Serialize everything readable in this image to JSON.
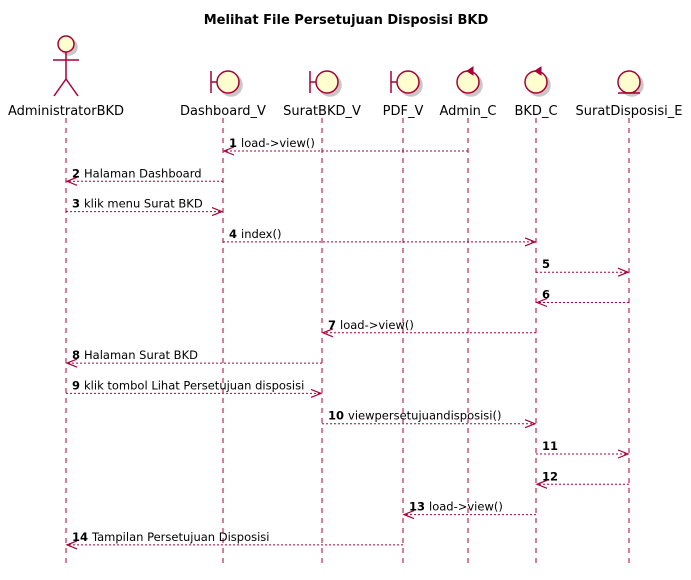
{
  "title": "Melihat File Persetujuan Disposisi BKD",
  "participants": [
    {
      "id": "admin",
      "name": "AdministratorBKD",
      "kind": "actor"
    },
    {
      "id": "dash",
      "name": "Dashboard_V",
      "kind": "boundary"
    },
    {
      "id": "surat",
      "name": "SuratBKD_V",
      "kind": "boundary"
    },
    {
      "id": "pdf",
      "name": "PDF_V",
      "kind": "boundary"
    },
    {
      "id": "adminc",
      "name": "Admin_C",
      "kind": "control"
    },
    {
      "id": "bkdc",
      "name": "BKD_C",
      "kind": "control"
    },
    {
      "id": "entity",
      "name": "SuratDisposisi_E",
      "kind": "entity"
    }
  ],
  "messages": [
    {
      "num": "1",
      "text": "load->view()",
      "from": "adminc",
      "to": "dash"
    },
    {
      "num": "2",
      "text": "Halaman Dashboard",
      "from": "dash",
      "to": "admin"
    },
    {
      "num": "3",
      "text": "klik menu Surat BKD",
      "from": "admin",
      "to": "dash"
    },
    {
      "num": "4",
      "text": "index()",
      "from": "dash",
      "to": "bkdc"
    },
    {
      "num": "5",
      "text": "",
      "from": "bkdc",
      "to": "entity"
    },
    {
      "num": "6",
      "text": "",
      "from": "entity",
      "to": "bkdc"
    },
    {
      "num": "7",
      "text": "load->view()",
      "from": "bkdc",
      "to": "surat"
    },
    {
      "num": "8",
      "text": "Halaman Surat BKD",
      "from": "surat",
      "to": "admin"
    },
    {
      "num": "9",
      "text": "klik tombol Lihat Persetujuan disposisi",
      "from": "admin",
      "to": "surat"
    },
    {
      "num": "10",
      "text": "viewpersetujuandisposisi()",
      "from": "surat",
      "to": "bkdc"
    },
    {
      "num": "11",
      "text": "",
      "from": "bkdc",
      "to": "entity"
    },
    {
      "num": "12",
      "text": "",
      "from": "entity",
      "to": "bkdc"
    },
    {
      "num": "13",
      "text": "load->view()",
      "from": "bkdc",
      "to": "pdf"
    },
    {
      "num": "14",
      "text": "Tampilan Persetujuan Disposisi",
      "from": "pdf",
      "to": "admin"
    }
  ],
  "colors": {
    "line": "#a80036",
    "fill": "#fefece",
    "shadow": "#c8c8c8"
  }
}
